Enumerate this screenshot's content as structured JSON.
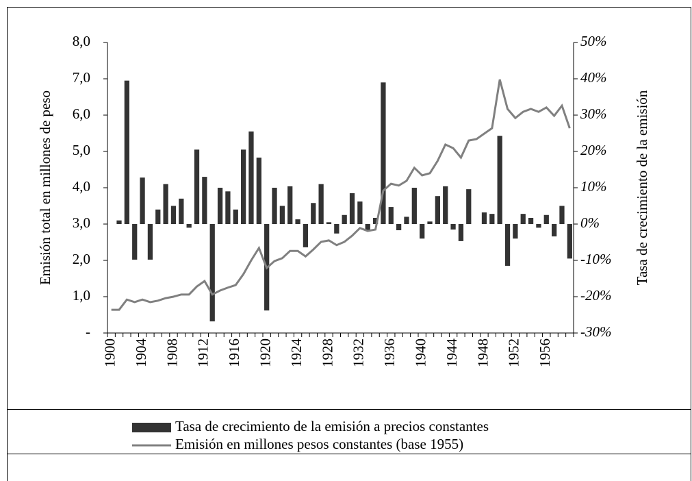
{
  "chart_data": {
    "type": "combo",
    "y_label": "Emisión total en millones de peso",
    "y2_label": "Tasa de crecimiento de la emisión",
    "categories": [
      "1900",
      null,
      null,
      null,
      "1904",
      null,
      null,
      null,
      "1908",
      null,
      null,
      null,
      "1912",
      null,
      null,
      null,
      "1916",
      null,
      null,
      null,
      "1920",
      null,
      null,
      null,
      "1924",
      null,
      null,
      null,
      "1928",
      null,
      null,
      null,
      "1932",
      null,
      null,
      null,
      "1936",
      null,
      null,
      null,
      "1940",
      null,
      null,
      null,
      "1944",
      null,
      null,
      null,
      "1948",
      null,
      null,
      null,
      "1952",
      null,
      null,
      null,
      "1956",
      null,
      null,
      null
    ],
    "series": [
      {
        "name": "Tasa de crecimiento de la emisión a precios constantes",
        "type": "bar",
        "axis": "y2",
        "color": "#333333",
        "values": [
          null,
          1,
          39.5,
          -9.8,
          12.8,
          -9.8,
          4,
          11,
          5,
          7,
          -1,
          20.5,
          13,
          -26.8,
          10,
          9,
          4,
          20.5,
          25.5,
          18.3,
          -23.8,
          10,
          5,
          10.4,
          1.3,
          -6.4,
          5.8,
          11,
          0.5,
          -2.6,
          2.5,
          8.5,
          6.2,
          -1.7,
          1.7,
          39,
          4.7,
          -1.7,
          2,
          10,
          -4,
          0.7,
          7.7,
          10.4,
          -1.5,
          -4.7,
          9.6,
          null,
          3.2,
          2.8,
          24.3,
          -11.5,
          -4,
          2.8,
          1.7,
          -1,
          2.5,
          -3.4,
          5,
          -9.5
        ]
      },
      {
        "name": "Emisión en millones pesos constantes (base 1955)",
        "type": "line",
        "color": "#808080",
        "values": [
          0.64,
          0.64,
          0.92,
          0.85,
          0.92,
          0.85,
          0.89,
          0.96,
          1.0,
          1.06,
          1.06,
          1.28,
          1.43,
          1.06,
          1.17,
          1.25,
          1.32,
          1.62,
          2.0,
          2.34,
          1.79,
          1.98,
          2.06,
          2.26,
          2.26,
          2.11,
          2.3,
          2.51,
          2.55,
          2.42,
          2.51,
          2.68,
          2.89,
          2.81,
          2.85,
          3.92,
          4.11,
          4.06,
          4.19,
          4.55,
          4.34,
          4.4,
          4.74,
          5.19,
          5.09,
          4.83,
          5.3,
          5.34,
          5.49,
          5.64,
          6.98,
          6.17,
          5.92,
          6.09,
          6.17,
          6.09,
          6.21,
          5.98,
          6.26,
          5.64
        ]
      }
    ],
    "ylim": [
      0,
      8
    ],
    "yticks": [
      {
        "value": 0,
        "label": "-"
      },
      {
        "value": 1,
        "label": "1,0"
      },
      {
        "value": 2,
        "label": "2,0"
      },
      {
        "value": 3,
        "label": "3,0"
      },
      {
        "value": 4,
        "label": "4,0"
      },
      {
        "value": 5,
        "label": "5,0"
      },
      {
        "value": 6,
        "label": "6,0"
      },
      {
        "value": 7,
        "label": "7,0"
      },
      {
        "value": 8,
        "label": "8,0"
      }
    ],
    "y2lim": [
      -30,
      50
    ],
    "y2ticks": [
      {
        "value": -30,
        "label": "-30%"
      },
      {
        "value": -20,
        "label": "-20%"
      },
      {
        "value": -10,
        "label": "-10%"
      },
      {
        "value": 0,
        "label": "0%"
      },
      {
        "value": 10,
        "label": "10%"
      },
      {
        "value": 20,
        "label": "20%"
      },
      {
        "value": 30,
        "label": "30%"
      },
      {
        "value": 40,
        "label": "40%"
      },
      {
        "value": 50,
        "label": "50%"
      }
    ],
    "legend": "bottom"
  }
}
